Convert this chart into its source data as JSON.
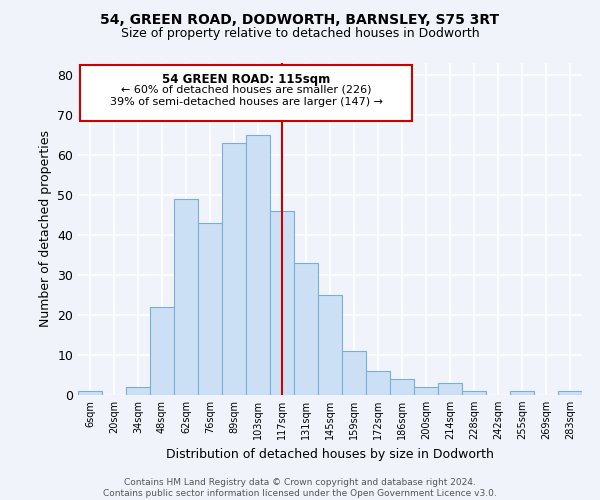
{
  "title": "54, GREEN ROAD, DODWORTH, BARNSLEY, S75 3RT",
  "subtitle": "Size of property relative to detached houses in Dodworth",
  "xlabel": "Distribution of detached houses by size in Dodworth",
  "ylabel": "Number of detached properties",
  "bar_labels": [
    "6sqm",
    "20sqm",
    "34sqm",
    "48sqm",
    "62sqm",
    "76sqm",
    "89sqm",
    "103sqm",
    "117sqm",
    "131sqm",
    "145sqm",
    "159sqm",
    "172sqm",
    "186sqm",
    "200sqm",
    "214sqm",
    "228sqm",
    "242sqm",
    "255sqm",
    "269sqm",
    "283sqm"
  ],
  "bar_values": [
    1,
    0,
    2,
    22,
    49,
    43,
    63,
    65,
    46,
    33,
    25,
    11,
    6,
    4,
    2,
    3,
    1,
    0,
    1,
    0,
    1
  ],
  "bar_color": "#cce0f5",
  "bar_edge_color": "#7aaed6",
  "vline_x": 8,
  "vline_color": "#cc0000",
  "ylim": [
    0,
    83
  ],
  "yticks": [
    0,
    10,
    20,
    30,
    40,
    50,
    60,
    70,
    80
  ],
  "annotation_title": "54 GREEN ROAD: 115sqm",
  "annotation_line1": "← 60% of detached houses are smaller (226)",
  "annotation_line2": "39% of semi-detached houses are larger (147) →",
  "annotation_box_edge": "#cc0000",
  "footer_line1": "Contains HM Land Registry data © Crown copyright and database right 2024.",
  "footer_line2": "Contains public sector information licensed under the Open Government Licence v3.0.",
  "background_color": "#f0f4fa",
  "plot_bg_color": "#f0f4fa",
  "grid_color": "#ffffff",
  "title_fontsize": 10,
  "subtitle_fontsize": 9
}
